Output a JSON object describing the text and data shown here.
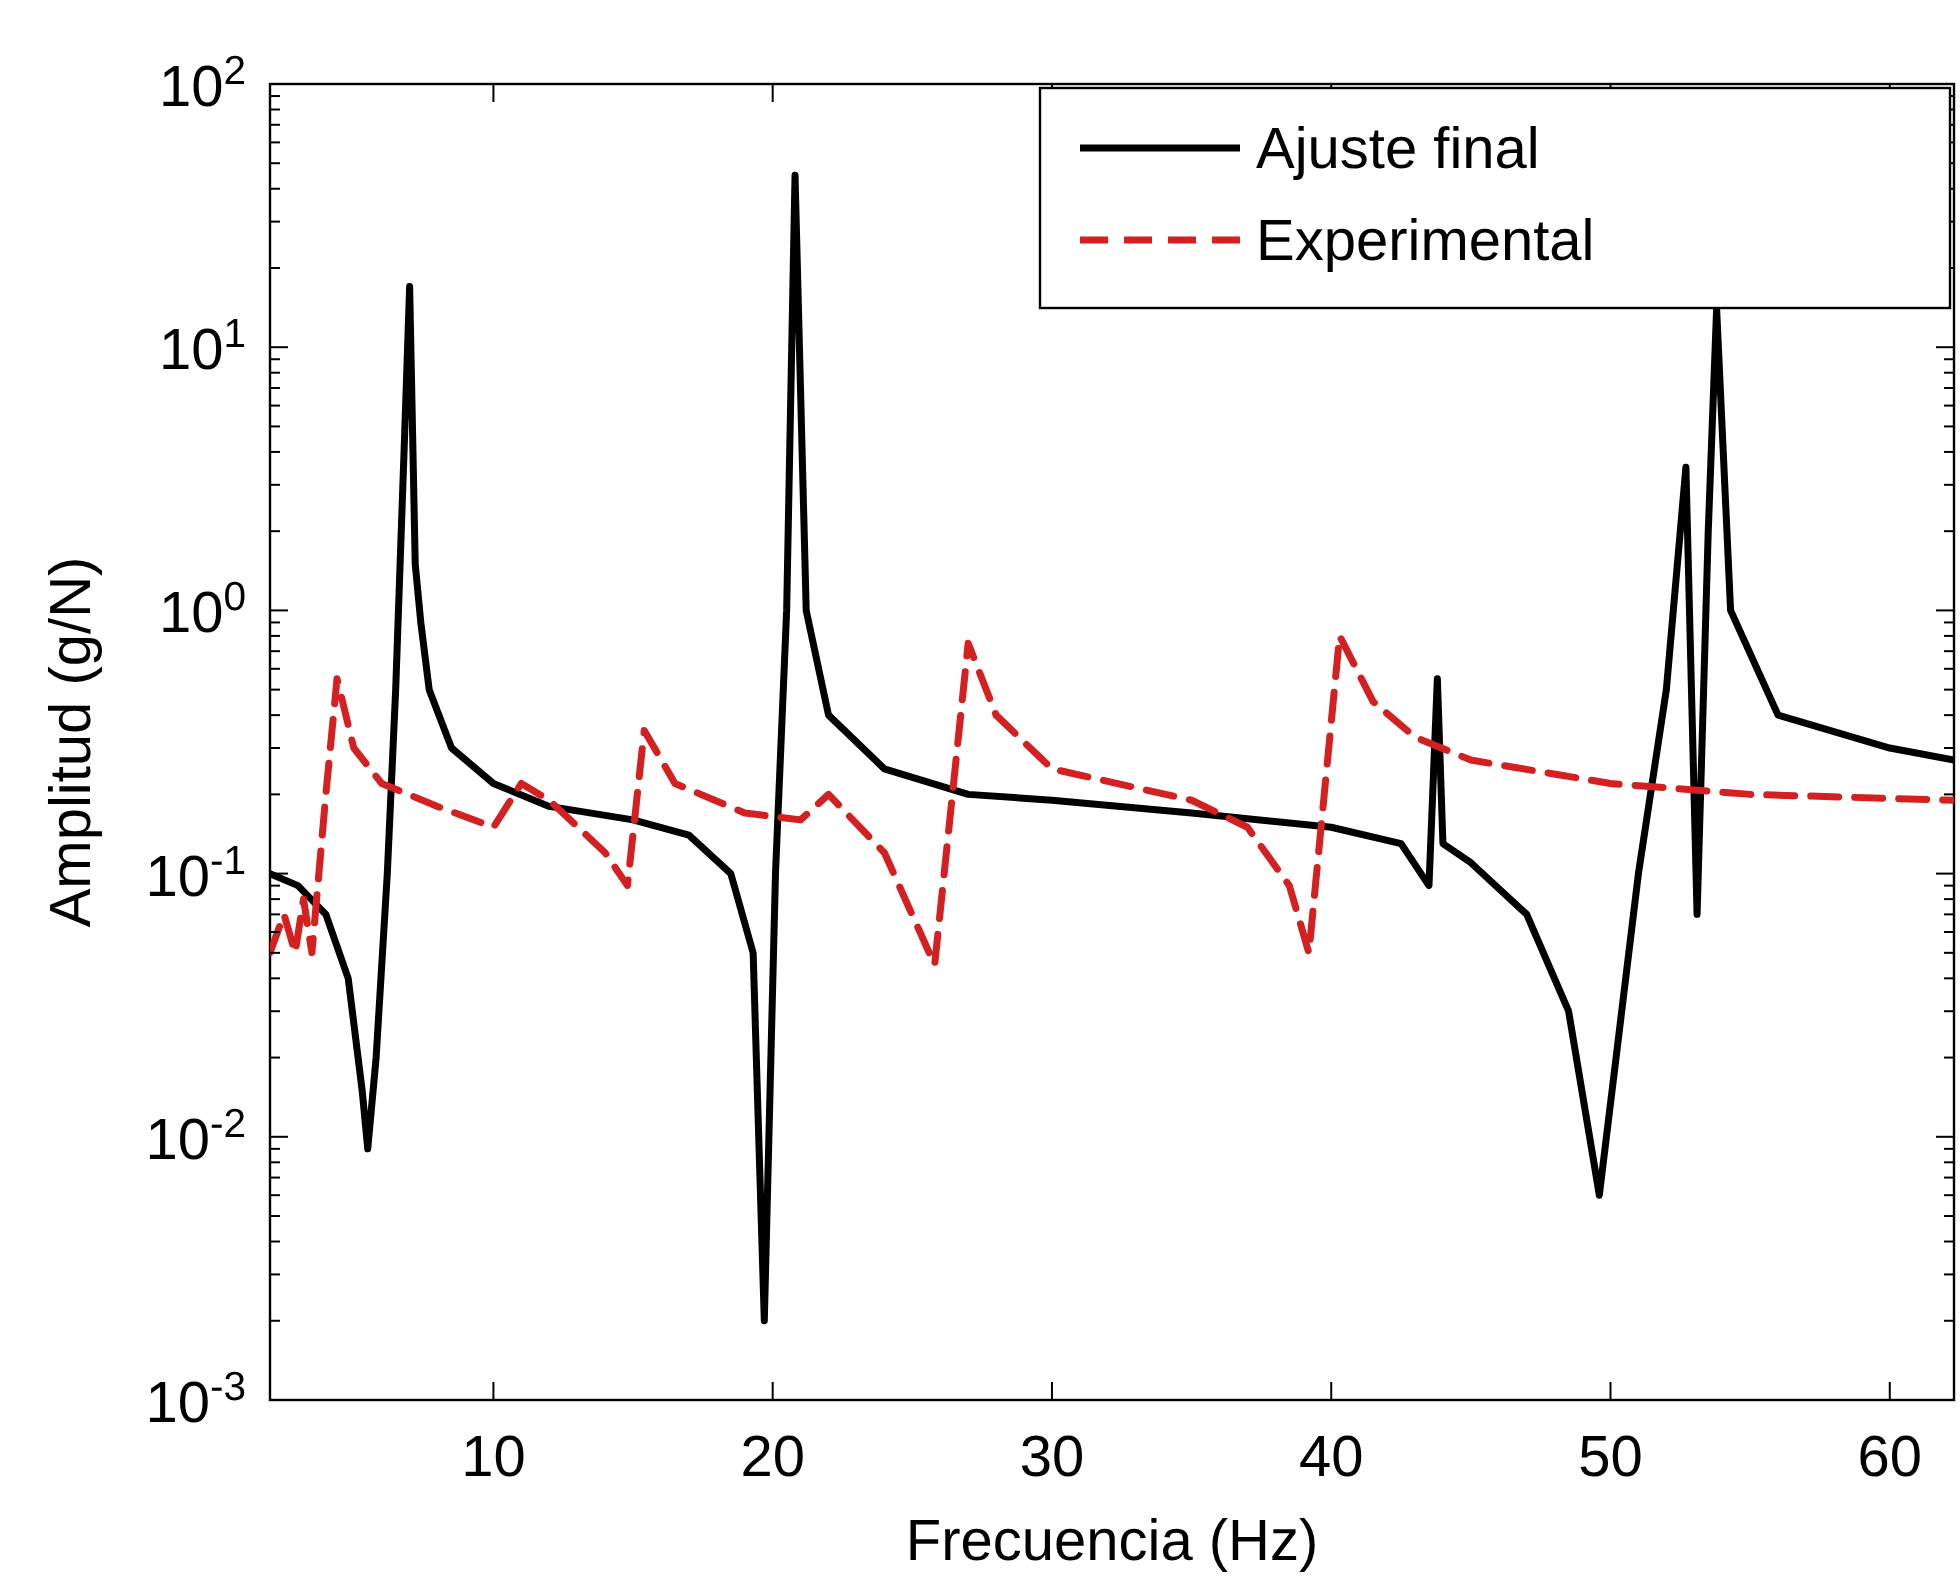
{
  "chart_data": {
    "type": "line",
    "xlabel": "Frecuencia (Hz)",
    "ylabel": "Amplitud (g/N)",
    "log": "y",
    "legend": "top right",
    "grid": false,
    "xlim": [
      2,
      62.3
    ],
    "ylim": [
      0.001,
      100
    ],
    "xticks": [
      10,
      20,
      30,
      40,
      50,
      60
    ],
    "yticks": [
      {
        "value": 0.001,
        "label": "10$^{-3}$"
      },
      {
        "value": 0.01,
        "label": "10$^{-2}$"
      },
      {
        "value": 0.1,
        "label": "10$^{-1}$"
      },
      {
        "value": 1,
        "label": "10$^{0}$"
      },
      {
        "value": 10,
        "label": "10$^{1}$"
      },
      {
        "value": 100,
        "label": "10$^{2}$"
      }
    ],
    "series": [
      {
        "name": "Ajuste final",
        "color": "#000000",
        "line_style": "solid",
        "x": [
          2,
          3,
          4,
          4.8,
          5.3,
          5.5,
          5.8,
          6.2,
          6.5,
          6.8,
          7.0,
          7.2,
          7.4,
          7.7,
          8.5,
          10,
          12,
          15,
          17,
          18.5,
          19.3,
          19.7,
          20.1,
          20.5,
          20.8,
          21.2,
          22,
          24,
          27,
          30,
          35,
          40,
          42.5,
          43.5,
          43.8,
          44.0,
          45,
          47,
          48.5,
          49.6,
          50.2,
          51,
          52,
          52.7,
          53.1,
          53.5,
          53.8,
          54.3,
          56,
          60,
          62.3
        ],
        "values": [
          0.1,
          0.09,
          0.07,
          0.04,
          0.015,
          0.009,
          0.02,
          0.1,
          0.5,
          4,
          17,
          1.5,
          0.9,
          0.5,
          0.3,
          0.22,
          0.18,
          0.16,
          0.14,
          0.1,
          0.05,
          0.002,
          0.1,
          1,
          45,
          1,
          0.4,
          0.25,
          0.2,
          0.19,
          0.17,
          0.15,
          0.13,
          0.09,
          0.55,
          0.13,
          0.11,
          0.07,
          0.03,
          0.006,
          0.02,
          0.1,
          0.5,
          3.5,
          0.07,
          2,
          14,
          1,
          0.4,
          0.3,
          0.27
        ]
      },
      {
        "name": "Experimental",
        "color": "#d42020",
        "line_style": "dashed",
        "x": [
          2,
          2.5,
          2.9,
          3.2,
          3.5,
          4,
          4.4,
          5,
          6,
          8,
          10,
          11,
          12,
          14,
          14.8,
          15.4,
          16.5,
          19,
          21,
          22,
          24,
          25.8,
          27,
          28,
          30,
          35,
          37,
          38.5,
          39.2,
          40.3,
          41.5,
          43,
          45,
          50,
          55,
          62.3
        ],
        "values": [
          0.05,
          0.07,
          0.05,
          0.08,
          0.05,
          0.2,
          0.55,
          0.3,
          0.22,
          0.18,
          0.15,
          0.22,
          0.19,
          0.12,
          0.09,
          0.35,
          0.22,
          0.17,
          0.16,
          0.2,
          0.12,
          0.045,
          0.75,
          0.4,
          0.25,
          0.19,
          0.15,
          0.09,
          0.05,
          0.8,
          0.45,
          0.33,
          0.27,
          0.22,
          0.2,
          0.19
        ]
      }
    ]
  }
}
